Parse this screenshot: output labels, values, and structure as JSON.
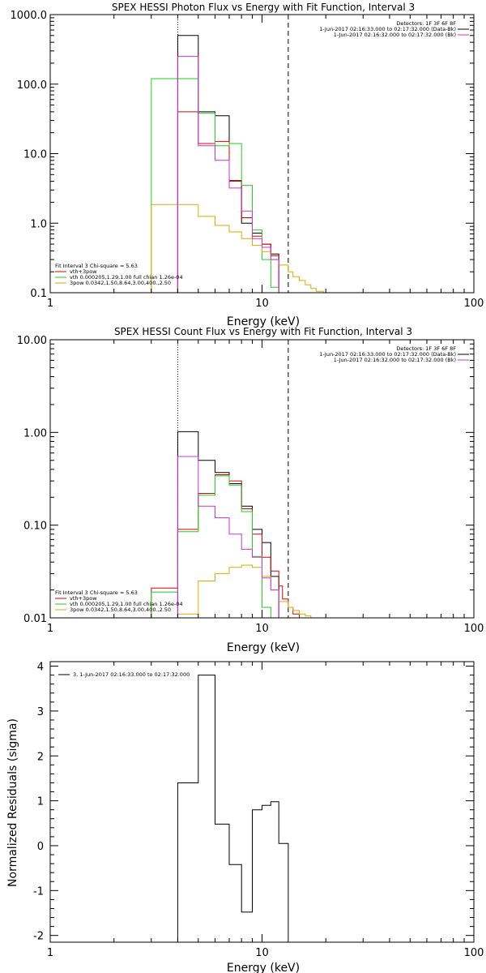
{
  "chart_data": [
    {
      "type": "line",
      "title": "SPEX HESSI Photon Flux vs Energy with Fit Function, Interval 3",
      "xlabel": "Energy (keV)",
      "ylabel": "",
      "xscale": "log",
      "yscale": "log",
      "xlim": [
        1,
        100
      ],
      "ylim": [
        0.1,
        1000
      ],
      "x_ticks": [
        "1",
        "10",
        "100"
      ],
      "y_ticks": [
        "0.1",
        "1.0",
        "10.0",
        "100.0",
        "1000.0"
      ],
      "vlines": [
        {
          "x": 4.0,
          "style": "dotted"
        },
        {
          "x": 13.3,
          "style": "dashed"
        }
      ],
      "legend_top": [
        "Detectors: 1F 3F 6F 8F",
        "1-Jun-2017 02:16:33.000 to 02:17:32.000 (Data-Bk)",
        "1-Jun-2017 02:16:32.000 to 02:17:32.000 (Bk)"
      ],
      "legend_top_colors": [
        "#000000",
        "#000000",
        "#cc33cc"
      ],
      "legend_bottom_title": "Fit Interval 3   Chi-square = 5.63",
      "legend_bottom": [
        "vth+3pow",
        "vth 0.000205,1.29,1.00  full chian 1.26e-04",
        "3pow 0.0342,1.50,8.64,3.00,400.,2.50"
      ],
      "legend_bottom_colors": [
        "#dd0000",
        "#22cc22",
        "#ddaa00"
      ],
      "bin_edges": [
        3.0,
        3.5,
        4.0,
        4.5,
        5.0,
        5.5,
        6.0,
        6.5,
        7.0,
        7.5,
        8.0,
        8.5,
        9.0,
        9.5,
        10.0,
        10.5,
        11.0,
        11.5,
        12.0,
        12.5,
        13.3,
        14.0,
        15.0,
        16.0,
        17.0,
        18.0,
        19.5
      ],
      "series": [
        {
          "name": "Data-Bk",
          "color": "#000000",
          "start": 2,
          "values": [
            500,
            500,
            40,
            40,
            35,
            35,
            4.1,
            4.1,
            1.0,
            1.0,
            0.72,
            0.72,
            0.5,
            0.5,
            0.36,
            0.36
          ]
        },
        {
          "name": "vth+3pow",
          "color": "#dd0000",
          "start": 2,
          "values": [
            40,
            40,
            14,
            14,
            15,
            15,
            4.0,
            4.0,
            1.2,
            1.2,
            0.65,
            0.65,
            0.5,
            0.5,
            0.34,
            0.34
          ]
        },
        {
          "name": "vth",
          "color": "#22cc22",
          "start": 0,
          "values": [
            120,
            120,
            120,
            120,
            38,
            38,
            13,
            13,
            14,
            14,
            3.5,
            3.5,
            0.8,
            0.8,
            0.3,
            0.3,
            0.12,
            0.12
          ]
        },
        {
          "name": "3pow",
          "color": "#ddaa00",
          "start": 0,
          "values": [
            1.85,
            1.85,
            1.85,
            1.85,
            1.25,
            1.25,
            0.93,
            0.93,
            0.75,
            0.75,
            0.6,
            0.6,
            0.48,
            0.48,
            0.39,
            0.39,
            0.3,
            0.3,
            0.25,
            0.25,
            0.2,
            0.17,
            0.15,
            0.13,
            0.115,
            0.105
          ]
        },
        {
          "name": "Bk",
          "color": "#cc33cc",
          "start": 2,
          "values": [
            250,
            250,
            13,
            13,
            8,
            8,
            3.2,
            3.2,
            1.5,
            1.5,
            0.6,
            0.6,
            0.45,
            0.45,
            0.3,
            0.3
          ]
        }
      ]
    },
    {
      "type": "line",
      "title": "SPEX HESSI Count Flux vs Energy with Fit Function, Interval 3",
      "xlabel": "Energy (keV)",
      "ylabel": "",
      "xscale": "log",
      "yscale": "log",
      "xlim": [
        1,
        100
      ],
      "ylim": [
        0.01,
        10
      ],
      "x_ticks": [
        "1",
        "10",
        "100"
      ],
      "y_ticks": [
        "0.01",
        "0.10",
        "1.00",
        "10.00"
      ],
      "vlines": [
        {
          "x": 4.0,
          "style": "dotted"
        },
        {
          "x": 13.3,
          "style": "dashed"
        }
      ],
      "legend_top": [
        "Detectors: 1F 3F 6F 8F",
        "1-Jun-2017 02:16:33.000 to 02:17:32.000 (Data-Bk)",
        "1-Jun-2017 02:16:32.000 to 02:17:32.000 (Bk)"
      ],
      "legend_top_colors": [
        "#000000",
        "#000000",
        "#cc33cc"
      ],
      "legend_bottom_title": "Fit Interval 3   Chi-square = 5.63",
      "legend_bottom": [
        "vth+3pow",
        "vth 0.000205,1.29,1.00  full chian 1.26e-04",
        "3pow 0.0342,1.50,8.64,3.00,400.,2.50"
      ],
      "legend_bottom_colors": [
        "#dd0000",
        "#22cc22",
        "#ddaa00"
      ],
      "bin_edges": [
        3.0,
        3.5,
        4.0,
        4.5,
        5.0,
        5.5,
        6.0,
        6.5,
        7.0,
        7.5,
        8.0,
        8.5,
        9.0,
        9.5,
        10.0,
        10.5,
        11.0,
        11.5,
        12.0,
        12.5,
        13.3,
        14.0,
        15.0,
        16.0,
        17.0,
        18.0,
        19.5
      ],
      "series": [
        {
          "name": "Data-Bk",
          "color": "#000000",
          "start": 2,
          "values": [
            1.02,
            1.02,
            0.5,
            0.5,
            0.37,
            0.37,
            0.28,
            0.28,
            0.16,
            0.16,
            0.09,
            0.09,
            0.065,
            0.065,
            0.028,
            0.028,
            0.01,
            0.01
          ]
        },
        {
          "name": "vth+3pow",
          "color": "#dd0000",
          "start": 0,
          "values": [
            0.021,
            0.021,
            0.09,
            0.09,
            0.22,
            0.22,
            0.35,
            0.35,
            0.3,
            0.3,
            0.15,
            0.15,
            0.08,
            0.08,
            0.045,
            0.045,
            0.032,
            0.032,
            0.022,
            0.016,
            0.013,
            0.011
          ]
        },
        {
          "name": "vth",
          "color": "#22cc22",
          "start": 0,
          "values": [
            0.019,
            0.019,
            0.085,
            0.085,
            0.21,
            0.21,
            0.34,
            0.34,
            0.27,
            0.27,
            0.14,
            0.14,
            0.046,
            0.046,
            0.013,
            0.013
          ]
        },
        {
          "name": "3pow",
          "color": "#ddaa00",
          "start": 2,
          "values": [
            0.011,
            0.011,
            0.025,
            0.025,
            0.03,
            0.03,
            0.035,
            0.035,
            0.037,
            0.037,
            0.035,
            0.035,
            0.028,
            0.028,
            0.02,
            0.02,
            0.015,
            0.015,
            0.013,
            0.012,
            0.011,
            0.0105
          ]
        },
        {
          "name": "Bk",
          "color": "#cc33cc",
          "start": 2,
          "values": [
            0.55,
            0.55,
            0.16,
            0.16,
            0.12,
            0.12,
            0.08,
            0.08,
            0.055,
            0.055,
            0.045,
            0.045,
            0.027,
            0.027,
            0.02,
            0.02,
            0.01,
            0.01
          ]
        }
      ]
    },
    {
      "type": "line",
      "title": "",
      "xlabel": "Energy (keV)",
      "ylabel": "Normalized Residuals (sigma)",
      "xscale": "log",
      "yscale": "linear",
      "xlim": [
        1,
        100
      ],
      "ylim": [
        -2.15,
        4.1
      ],
      "x_ticks": [
        "1",
        "10",
        "100"
      ],
      "y_ticks": [
        "-2",
        "-1",
        "0",
        "1",
        "2",
        "3",
        "4"
      ],
      "legend": [
        "3, 1-Jun-2017 02:16:33.000 to 02:17:32.000"
      ],
      "bin_edges": [
        4.0,
        5.0,
        6.0,
        7.0,
        8.0,
        9.0,
        10.0,
        11.0,
        12.0,
        13.3
      ],
      "series": [
        {
          "name": "3, 1-Jun-2017 02:16:33.000 to 02:17:32.000",
          "color": "#000000",
          "start": 0,
          "values": [
            1.4,
            3.8,
            0.48,
            -0.42,
            -1.48,
            0.8,
            0.9,
            0.98,
            0.05
          ]
        }
      ]
    }
  ]
}
